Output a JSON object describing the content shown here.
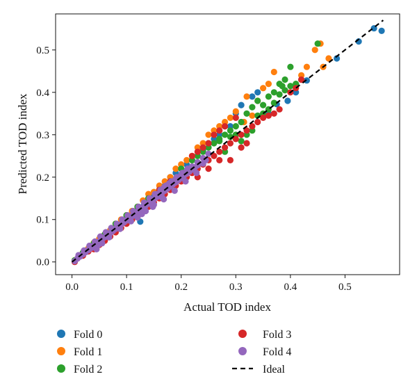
{
  "chart_data": {
    "type": "scatter",
    "title": "",
    "xlabel": "Actual TOD index",
    "ylabel": "Predicted TOD index",
    "xlim": [
      -0.03,
      0.6
    ],
    "ylim": [
      -0.03,
      0.585
    ],
    "xticks": [
      0.0,
      0.1,
      0.2,
      0.3,
      0.4,
      0.5
    ],
    "yticks": [
      0.0,
      0.1,
      0.2,
      0.3,
      0.4,
      0.5
    ],
    "xtick_labels": [
      "0.0",
      "0.1",
      "0.2",
      "0.3",
      "0.4",
      "0.5"
    ],
    "ytick_labels": [
      "0.0",
      "0.1",
      "0.2",
      "0.3",
      "0.4",
      "0.5"
    ],
    "grid": false,
    "legend_position": "bottom, outside plot, two columns",
    "series": [
      {
        "name": "Fold 0",
        "color": "#1f77b4",
        "points": [
          [
            0.567,
            0.545
          ],
          [
            0.553,
            0.551
          ],
          [
            0.525,
            0.52
          ],
          [
            0.485,
            0.48
          ],
          [
            0.43,
            0.428
          ],
          [
            0.42,
            0.43
          ],
          [
            0.41,
            0.4
          ],
          [
            0.395,
            0.38
          ],
          [
            0.375,
            0.372
          ],
          [
            0.36,
            0.35
          ],
          [
            0.34,
            0.4
          ],
          [
            0.33,
            0.39
          ],
          [
            0.31,
            0.37
          ],
          [
            0.3,
            0.35
          ],
          [
            0.28,
            0.32
          ],
          [
            0.26,
            0.29
          ],
          [
            0.24,
            0.265
          ],
          [
            0.22,
            0.24
          ],
          [
            0.2,
            0.22
          ],
          [
            0.18,
            0.2
          ],
          [
            0.16,
            0.17
          ],
          [
            0.14,
            0.15
          ],
          [
            0.12,
            0.12
          ],
          [
            0.125,
            0.095
          ],
          [
            0.11,
            0.11
          ],
          [
            0.1,
            0.1
          ],
          [
            0.09,
            0.09
          ],
          [
            0.08,
            0.08
          ],
          [
            0.06,
            0.06
          ],
          [
            0.04,
            0.04
          ],
          [
            0.02,
            0.02
          ],
          [
            0.005,
            0.003
          ],
          [
            0.018,
            0.016
          ],
          [
            0.025,
            0.027
          ],
          [
            0.05,
            0.052
          ],
          [
            0.07,
            0.07
          ],
          [
            0.1,
            0.1
          ],
          [
            0.13,
            0.13
          ],
          [
            0.15,
            0.16
          ],
          [
            0.17,
            0.18
          ],
          [
            0.19,
            0.21
          ],
          [
            0.21,
            0.23
          ],
          [
            0.23,
            0.25
          ],
          [
            0.25,
            0.28
          ],
          [
            0.27,
            0.3
          ],
          [
            0.29,
            0.32
          ]
        ]
      },
      {
        "name": "Fold 1",
        "color": "#ff7f0e",
        "points": [
          [
            0.455,
            0.515
          ],
          [
            0.445,
            0.5
          ],
          [
            0.43,
            0.46
          ],
          [
            0.42,
            0.44
          ],
          [
            0.37,
            0.448
          ],
          [
            0.36,
            0.42
          ],
          [
            0.35,
            0.41
          ],
          [
            0.32,
            0.39
          ],
          [
            0.3,
            0.355
          ],
          [
            0.28,
            0.33
          ],
          [
            0.26,
            0.31
          ],
          [
            0.24,
            0.28
          ],
          [
            0.22,
            0.25
          ],
          [
            0.2,
            0.23
          ],
          [
            0.18,
            0.2
          ],
          [
            0.16,
            0.18
          ],
          [
            0.14,
            0.16
          ],
          [
            0.12,
            0.13
          ],
          [
            0.1,
            0.11
          ],
          [
            0.08,
            0.09
          ],
          [
            0.06,
            0.065
          ],
          [
            0.04,
            0.045
          ],
          [
            0.02,
            0.022
          ],
          [
            0.005,
            0.004
          ],
          [
            0.47,
            0.48
          ],
          [
            0.46,
            0.46
          ],
          [
            0.34,
            0.38
          ],
          [
            0.33,
            0.345
          ],
          [
            0.315,
            0.33
          ],
          [
            0.29,
            0.34
          ],
          [
            0.27,
            0.32
          ],
          [
            0.25,
            0.3
          ],
          [
            0.23,
            0.27
          ],
          [
            0.21,
            0.24
          ],
          [
            0.19,
            0.22
          ],
          [
            0.17,
            0.19
          ],
          [
            0.15,
            0.165
          ],
          [
            0.13,
            0.145
          ],
          [
            0.11,
            0.12
          ],
          [
            0.09,
            0.1
          ],
          [
            0.07,
            0.075
          ],
          [
            0.05,
            0.055
          ],
          [
            0.03,
            0.032
          ],
          [
            0.012,
            0.012
          ]
        ]
      },
      {
        "name": "Fold 2",
        "color": "#2ca02c",
        "points": [
          [
            0.45,
            0.515
          ],
          [
            0.4,
            0.46
          ],
          [
            0.39,
            0.43
          ],
          [
            0.385,
            0.415
          ],
          [
            0.38,
            0.42
          ],
          [
            0.37,
            0.4
          ],
          [
            0.36,
            0.39
          ],
          [
            0.35,
            0.37
          ],
          [
            0.34,
            0.38
          ],
          [
            0.33,
            0.365
          ],
          [
            0.32,
            0.35
          ],
          [
            0.31,
            0.33
          ],
          [
            0.3,
            0.32
          ],
          [
            0.29,
            0.31
          ],
          [
            0.28,
            0.3
          ],
          [
            0.27,
            0.29
          ],
          [
            0.26,
            0.28
          ],
          [
            0.25,
            0.27
          ],
          [
            0.24,
            0.26
          ],
          [
            0.23,
            0.25
          ],
          [
            0.22,
            0.24
          ],
          [
            0.2,
            0.22
          ],
          [
            0.18,
            0.19
          ],
          [
            0.16,
            0.17
          ],
          [
            0.14,
            0.15
          ],
          [
            0.12,
            0.13
          ],
          [
            0.1,
            0.11
          ],
          [
            0.08,
            0.09
          ],
          [
            0.06,
            0.065
          ],
          [
            0.04,
            0.044
          ],
          [
            0.02,
            0.022
          ],
          [
            0.005,
            0.004
          ],
          [
            0.3,
            0.3
          ],
          [
            0.31,
            0.285
          ],
          [
            0.32,
            0.3
          ],
          [
            0.28,
            0.26
          ],
          [
            0.27,
            0.285
          ],
          [
            0.29,
            0.295
          ],
          [
            0.33,
            0.31
          ],
          [
            0.34,
            0.345
          ],
          [
            0.35,
            0.35
          ],
          [
            0.36,
            0.36
          ],
          [
            0.37,
            0.375
          ],
          [
            0.38,
            0.395
          ],
          [
            0.39,
            0.405
          ],
          [
            0.4,
            0.415
          ],
          [
            0.41,
            0.42
          ]
        ]
      },
      {
        "name": "Fold 3",
        "color": "#d62728",
        "points": [
          [
            0.42,
            0.43
          ],
          [
            0.41,
            0.41
          ],
          [
            0.4,
            0.4
          ],
          [
            0.38,
            0.36
          ],
          [
            0.37,
            0.35
          ],
          [
            0.36,
            0.345
          ],
          [
            0.35,
            0.34
          ],
          [
            0.34,
            0.33
          ],
          [
            0.33,
            0.32
          ],
          [
            0.32,
            0.31
          ],
          [
            0.31,
            0.3
          ],
          [
            0.3,
            0.29
          ],
          [
            0.29,
            0.28
          ],
          [
            0.28,
            0.27
          ],
          [
            0.27,
            0.26
          ],
          [
            0.26,
            0.25
          ],
          [
            0.25,
            0.24
          ],
          [
            0.24,
            0.23
          ],
          [
            0.23,
            0.22
          ],
          [
            0.22,
            0.21
          ],
          [
            0.21,
            0.2
          ],
          [
            0.2,
            0.19
          ],
          [
            0.19,
            0.18
          ],
          [
            0.18,
            0.17
          ],
          [
            0.17,
            0.16
          ],
          [
            0.16,
            0.15
          ],
          [
            0.15,
            0.14
          ],
          [
            0.14,
            0.13
          ],
          [
            0.13,
            0.12
          ],
          [
            0.12,
            0.11
          ],
          [
            0.11,
            0.1
          ],
          [
            0.1,
            0.09
          ],
          [
            0.09,
            0.08
          ],
          [
            0.08,
            0.07
          ],
          [
            0.07,
            0.06
          ],
          [
            0.06,
            0.05
          ],
          [
            0.05,
            0.04
          ],
          [
            0.04,
            0.03
          ],
          [
            0.03,
            0.025
          ],
          [
            0.02,
            0.015
          ],
          [
            0.01,
            0.008
          ],
          [
            0.005,
            0.0
          ],
          [
            0.22,
            0.25
          ],
          [
            0.23,
            0.26
          ],
          [
            0.24,
            0.27
          ],
          [
            0.25,
            0.28
          ],
          [
            0.26,
            0.3
          ],
          [
            0.27,
            0.31
          ],
          [
            0.28,
            0.32
          ],
          [
            0.3,
            0.34
          ],
          [
            0.31,
            0.27
          ],
          [
            0.32,
            0.28
          ],
          [
            0.29,
            0.24
          ],
          [
            0.27,
            0.24
          ],
          [
            0.25,
            0.22
          ],
          [
            0.23,
            0.2
          ],
          [
            0.2,
            0.2
          ],
          [
            0.18,
            0.19
          ],
          [
            0.16,
            0.17
          ]
        ]
      },
      {
        "name": "Fold 4",
        "color": "#9467bd",
        "points": [
          [
            0.005,
            0.002
          ],
          [
            0.01,
            0.008
          ],
          [
            0.015,
            0.013
          ],
          [
            0.02,
            0.018
          ],
          [
            0.025,
            0.023
          ],
          [
            0.03,
            0.028
          ],
          [
            0.035,
            0.033
          ],
          [
            0.04,
            0.038
          ],
          [
            0.045,
            0.043
          ],
          [
            0.05,
            0.048
          ],
          [
            0.055,
            0.053
          ],
          [
            0.06,
            0.058
          ],
          [
            0.065,
            0.063
          ],
          [
            0.07,
            0.068
          ],
          [
            0.075,
            0.073
          ],
          [
            0.08,
            0.078
          ],
          [
            0.085,
            0.083
          ],
          [
            0.09,
            0.088
          ],
          [
            0.095,
            0.093
          ],
          [
            0.1,
            0.098
          ],
          [
            0.105,
            0.103
          ],
          [
            0.11,
            0.108
          ],
          [
            0.115,
            0.113
          ],
          [
            0.12,
            0.118
          ],
          [
            0.125,
            0.123
          ],
          [
            0.13,
            0.128
          ],
          [
            0.135,
            0.133
          ],
          [
            0.14,
            0.138
          ],
          [
            0.145,
            0.143
          ],
          [
            0.15,
            0.148
          ],
          [
            0.155,
            0.153
          ],
          [
            0.16,
            0.158
          ],
          [
            0.165,
            0.163
          ],
          [
            0.17,
            0.168
          ],
          [
            0.175,
            0.173
          ],
          [
            0.18,
            0.178
          ],
          [
            0.185,
            0.183
          ],
          [
            0.19,
            0.188
          ],
          [
            0.195,
            0.193
          ],
          [
            0.2,
            0.198
          ],
          [
            0.205,
            0.203
          ],
          [
            0.21,
            0.208
          ],
          [
            0.215,
            0.213
          ],
          [
            0.22,
            0.218
          ],
          [
            0.225,
            0.223
          ],
          [
            0.23,
            0.228
          ],
          [
            0.012,
            0.016
          ],
          [
            0.022,
            0.027
          ],
          [
            0.032,
            0.038
          ],
          [
            0.042,
            0.048
          ],
          [
            0.052,
            0.06
          ],
          [
            0.062,
            0.07
          ],
          [
            0.072,
            0.08
          ],
          [
            0.082,
            0.09
          ],
          [
            0.092,
            0.1
          ],
          [
            0.102,
            0.11
          ],
          [
            0.112,
            0.12
          ],
          [
            0.122,
            0.13
          ],
          [
            0.132,
            0.14
          ],
          [
            0.142,
            0.15
          ],
          [
            0.152,
            0.16
          ],
          [
            0.162,
            0.17
          ],
          [
            0.172,
            0.18
          ],
          [
            0.182,
            0.19
          ],
          [
            0.192,
            0.2
          ],
          [
            0.202,
            0.21
          ],
          [
            0.212,
            0.22
          ],
          [
            0.048,
            0.04
          ],
          [
            0.068,
            0.058
          ],
          [
            0.088,
            0.078
          ],
          [
            0.108,
            0.096
          ],
          [
            0.128,
            0.113
          ],
          [
            0.148,
            0.13
          ],
          [
            0.168,
            0.148
          ],
          [
            0.188,
            0.168
          ],
          [
            0.208,
            0.19
          ],
          [
            0.228,
            0.21
          ],
          [
            0.155,
            0.16
          ],
          [
            0.168,
            0.175
          ],
          [
            0.178,
            0.185
          ],
          [
            0.19,
            0.196
          ],
          [
            0.2,
            0.205
          ],
          [
            0.21,
            0.215
          ],
          [
            0.22,
            0.225
          ],
          [
            0.23,
            0.235
          ],
          [
            0.24,
            0.245
          ],
          [
            0.25,
            0.255
          ],
          [
            0.045,
            0.03
          ],
          [
            0.055,
            0.044
          ],
          [
            0.12,
            0.105
          ],
          [
            0.135,
            0.12
          ],
          [
            0.15,
            0.135
          ],
          [
            0.165,
            0.152
          ],
          [
            0.24,
            0.232
          ],
          [
            0.245,
            0.24
          ]
        ]
      }
    ],
    "ideal_line": {
      "name": "Ideal",
      "color": "#000000",
      "style": "dashed",
      "x": [
        0.0,
        0.57
      ],
      "y": [
        0.0,
        0.57
      ]
    }
  },
  "legend": [
    {
      "label": "Fold 0",
      "color": "#1f77b4",
      "marker": "circle"
    },
    {
      "label": "Fold 1",
      "color": "#ff7f0e",
      "marker": "circle"
    },
    {
      "label": "Fold 2",
      "color": "#2ca02c",
      "marker": "circle"
    },
    {
      "label": "Fold 3",
      "color": "#d62728",
      "marker": "circle"
    },
    {
      "label": "Fold 4",
      "color": "#9467bd",
      "marker": "circle"
    },
    {
      "label": "Ideal",
      "color": "#000000",
      "marker": "dashed-line"
    }
  ]
}
